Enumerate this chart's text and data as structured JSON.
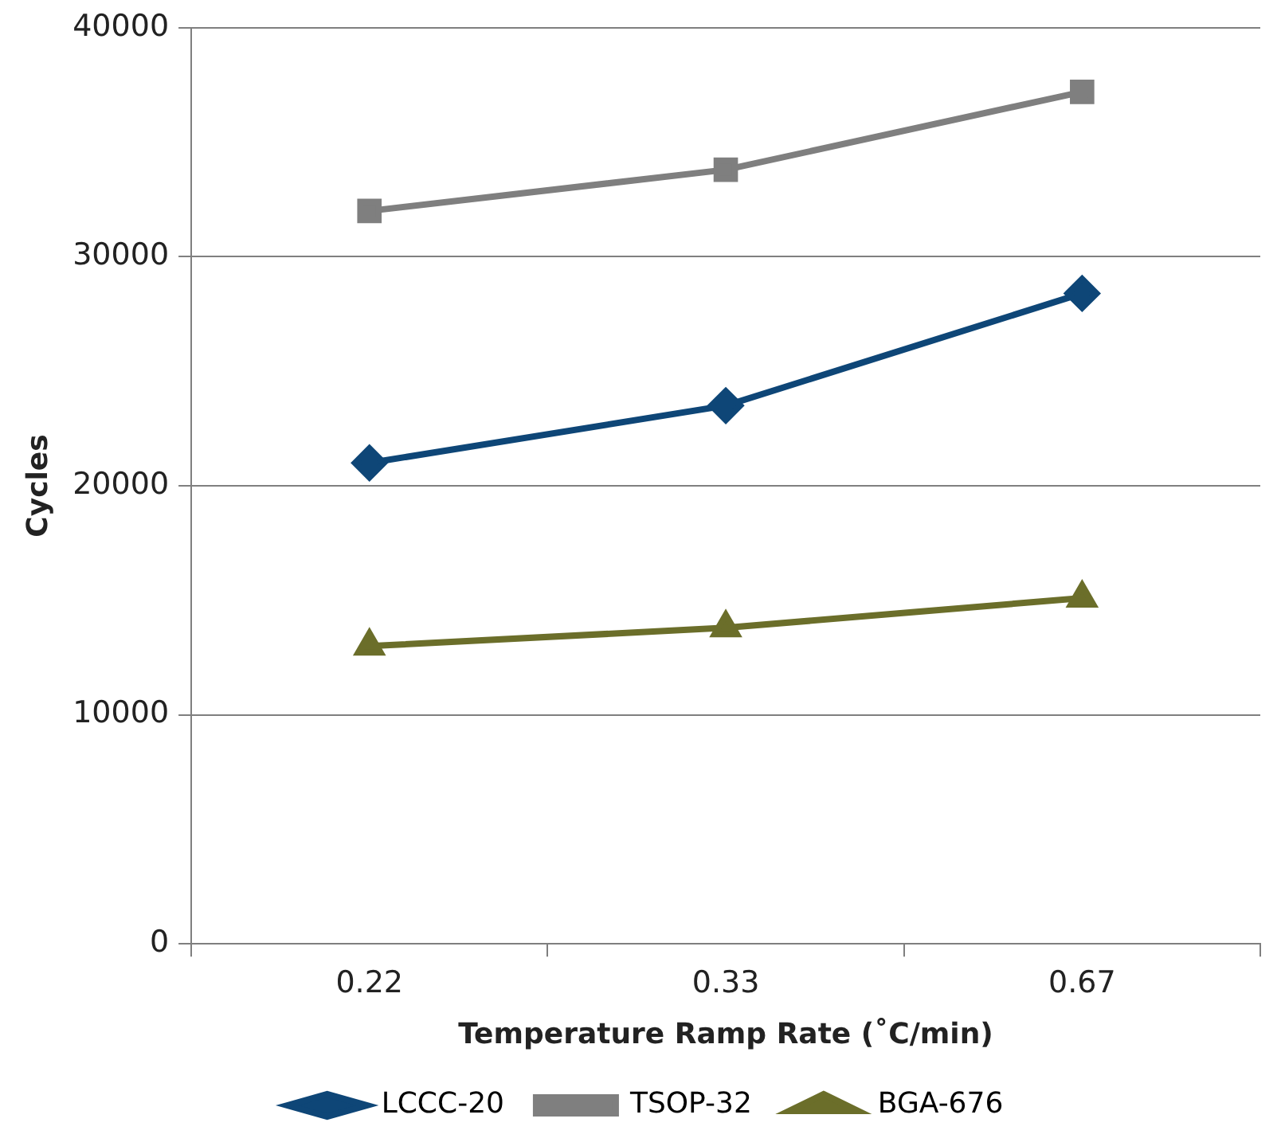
{
  "chart_data": {
    "type": "line",
    "xlabel": "Temperature Ramp Rate (˚C/min)",
    "ylabel": "Cycles",
    "categories": [
      "0.22",
      "0.33",
      "0.67"
    ],
    "series": [
      {
        "name": "LCCC-20",
        "color": "#0e4677",
        "marker": "diamond",
        "values": [
          21000,
          23500,
          28400
        ]
      },
      {
        "name": "TSOP-32",
        "color": "#7f7f7f",
        "marker": "square",
        "values": [
          32000,
          33800,
          37200
        ]
      },
      {
        "name": "BGA-676",
        "color": "#6b6e2a",
        "marker": "triangle",
        "values": [
          13000,
          13800,
          15100
        ]
      }
    ],
    "ylim": [
      0,
      40000
    ],
    "yticks": [
      0,
      10000,
      20000,
      30000,
      40000
    ],
    "grid": "y",
    "legend": "bottom",
    "line_style": "solid"
  }
}
